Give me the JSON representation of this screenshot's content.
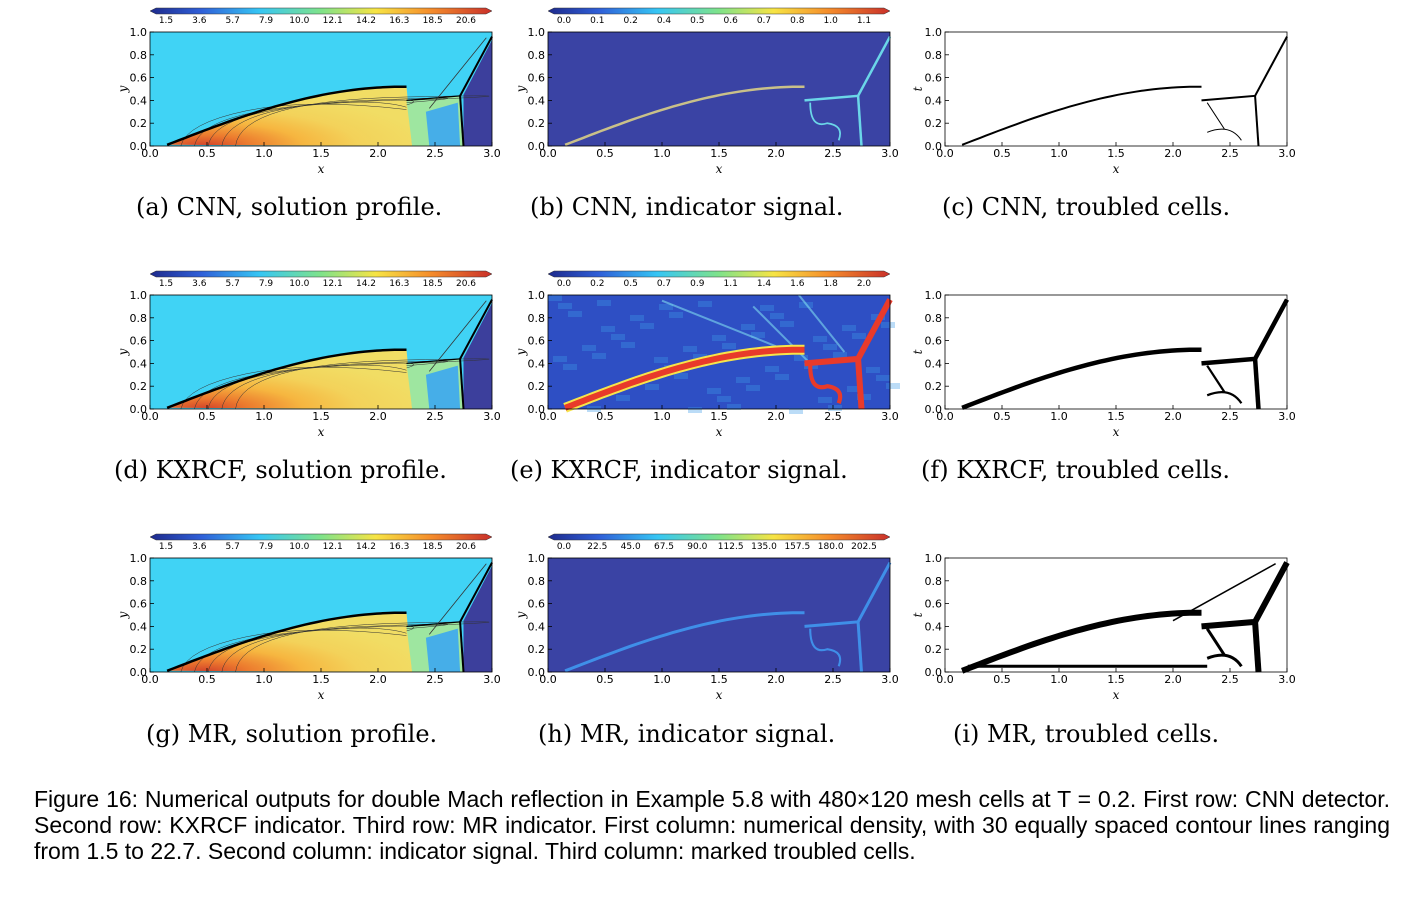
{
  "colors": {
    "jet_bg": "#40d3f5",
    "dark_blue": "#3c3f9c",
    "indicator_bg": "#3a43a4"
  },
  "axes": {
    "x_ticks": [
      "0.0",
      "0.5",
      "1.0",
      "1.5",
      "2.0",
      "2.5",
      "3.0"
    ],
    "y_ticks": [
      "0.0",
      "0.2",
      "0.4",
      "0.6",
      "0.8",
      "1.0"
    ],
    "x_label": "x",
    "y_label": "y",
    "t_label": "t"
  },
  "colorbars": {
    "density": [
      "1.5",
      "3.6",
      "5.7",
      "7.9",
      "10.0",
      "12.1",
      "14.2",
      "16.3",
      "18.5",
      "20.6"
    ],
    "cnn_signal": [
      "0.0",
      "0.1",
      "0.2",
      "0.4",
      "0.5",
      "0.6",
      "0.7",
      "0.8",
      "1.0",
      "1.1"
    ],
    "kxrcf_signal": [
      "0.0",
      "0.2",
      "0.5",
      "0.7",
      "0.9",
      "1.1",
      "1.4",
      "1.6",
      "1.8",
      "2.0"
    ],
    "mr_signal": [
      "0.0",
      "22.5",
      "45.0",
      "67.5",
      "90.0",
      "112.5",
      "135.0",
      "157.5",
      "180.0",
      "202.5"
    ]
  },
  "captions": {
    "a": "(a) CNN, solution profile.",
    "b": "(b) CNN, indicator signal.",
    "c": "(c) CNN, troubled cells.",
    "d": "(d) KXRCF, solution profile.",
    "e": "(e) KXRCF, indicator signal.",
    "f": "(f) KXRCF, troubled cells.",
    "g": "(g) MR, solution profile.",
    "h": "(h) MR, indicator signal.",
    "i": "(i) MR, troubled cells."
  },
  "figure_caption": "Figure 16: Numerical outputs for double Mach reflection in Example 5.8 with 480×120 mesh cells at T = 0.2. First row: CNN detector. Second row: KXRCF indicator. Third row: MR indicator. First column: numerical density, with 30 equally spaced contour lines ranging from 1.5 to 22.7. Second column: indicator signal. Third column: marked troubled cells."
}
